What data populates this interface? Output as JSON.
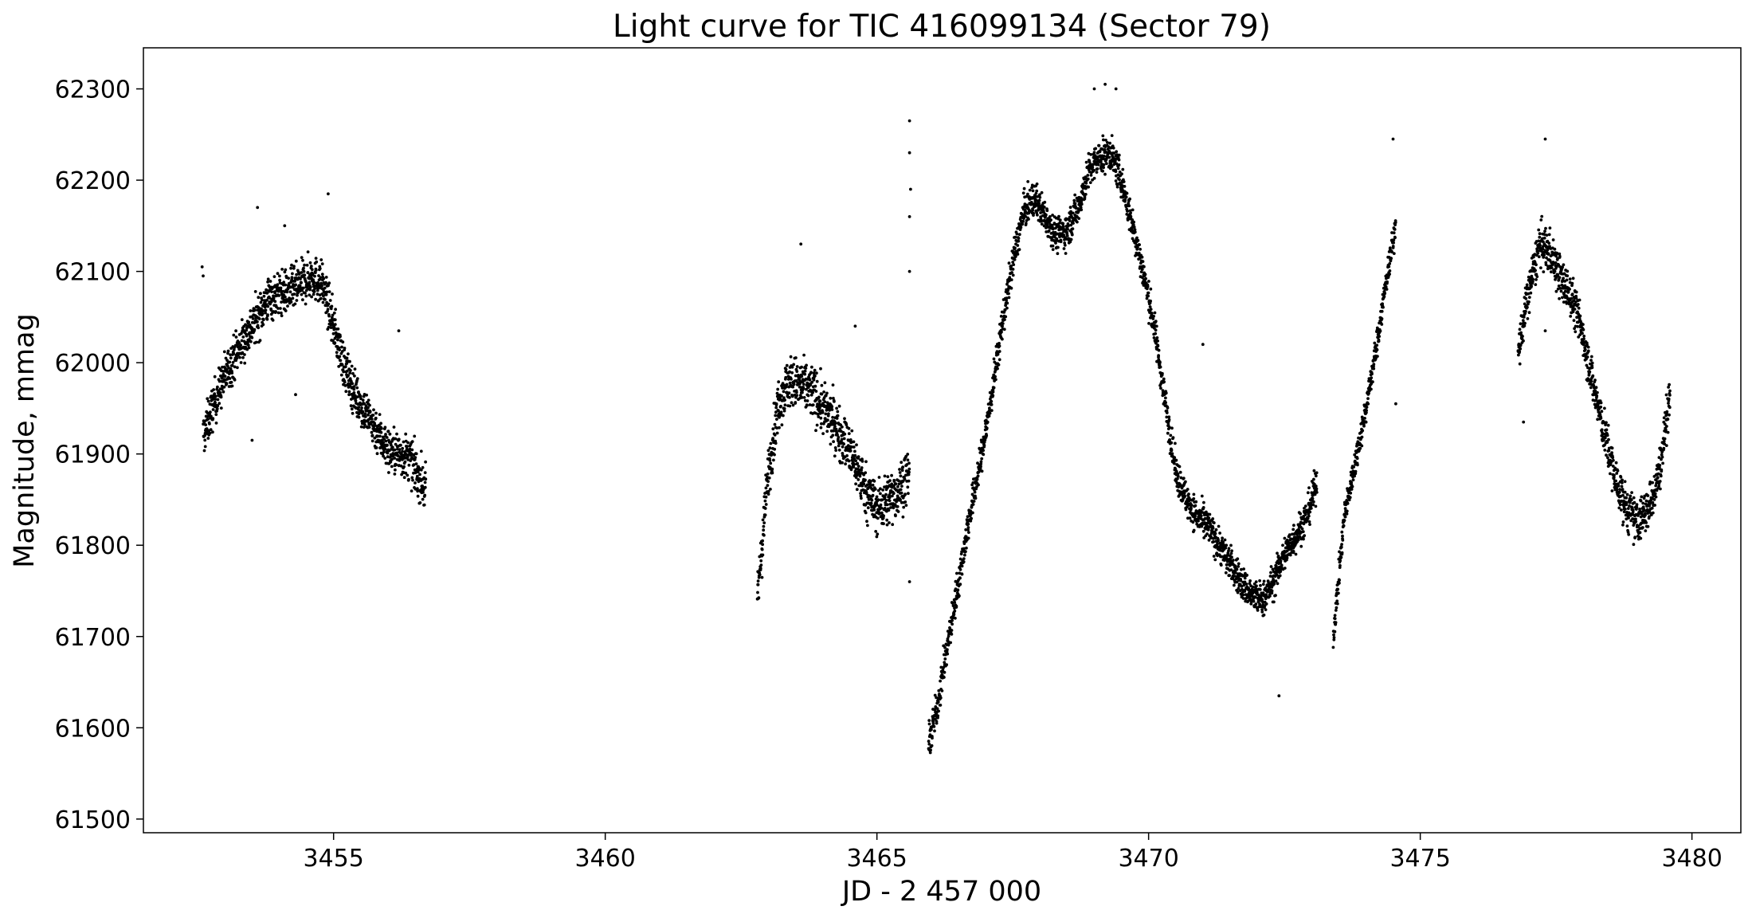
{
  "chart_data": {
    "type": "scatter",
    "title": "Light curve for TIC 416099134 (Sector 79)",
    "xlabel": "JD - 2 457 000",
    "ylabel": "Magnitude, mmag",
    "xlim": [
      3451.5,
      3480.9
    ],
    "ylim": [
      61485,
      62345
    ],
    "xticks": [
      3455,
      3460,
      3465,
      3470,
      3475,
      3480
    ],
    "yticks": [
      61500,
      61600,
      61700,
      61800,
      61900,
      62000,
      62100,
      62200,
      62300
    ],
    "grid": false,
    "marker_color": "#000000",
    "segments": [
      {
        "x": [
          3452.6,
          3452.8,
          3453.0,
          3453.2,
          3453.4,
          3453.6,
          3453.8,
          3454.0,
          3454.2,
          3454.4,
          3454.6,
          3454.8,
          3455.0,
          3455.2,
          3455.4,
          3455.6,
          3455.8,
          3456.0,
          3456.2,
          3456.4,
          3456.7
        ],
        "y": [
          61920,
          61955,
          61985,
          62010,
          62030,
          62050,
          62070,
          62075,
          62078,
          62085,
          62095,
          62085,
          62040,
          61995,
          61965,
          61945,
          61925,
          61905,
          61900,
          61895,
          61860
        ]
      },
      {
        "x": [
          3462.8,
          3463.0,
          3463.2,
          3463.4,
          3463.6,
          3463.8,
          3464.0,
          3464.2,
          3464.4,
          3464.6,
          3464.8,
          3465.0,
          3465.2,
          3465.4,
          3465.6
        ],
        "y": [
          61740,
          61880,
          61960,
          61980,
          61975,
          61970,
          61950,
          61935,
          61915,
          61890,
          61860,
          61840,
          61850,
          61860,
          61880
        ]
      },
      {
        "x": [
          3465.95,
          3466.1,
          3466.3,
          3466.5,
          3466.7,
          3466.9,
          3467.1,
          3467.3,
          3467.5,
          3467.7,
          3467.9,
          3468.1,
          3468.3,
          3468.5,
          3468.7,
          3468.9,
          3469.1,
          3469.3,
          3469.5,
          3469.7,
          3469.9,
          3470.1,
          3470.3,
          3470.5,
          3470.7,
          3470.9,
          3471.1,
          3471.3,
          3471.5,
          3471.7,
          3471.9,
          3472.1,
          3472.3,
          3472.5,
          3472.7,
          3472.9,
          3473.1
        ],
        "y": [
          61580,
          61620,
          61690,
          61760,
          61830,
          61890,
          61960,
          62040,
          62110,
          62165,
          62180,
          62160,
          62140,
          62145,
          62170,
          62210,
          62225,
          62230,
          62200,
          62150,
          62100,
          62040,
          61960,
          61880,
          61850,
          61830,
          61820,
          61800,
          61780,
          61760,
          61745,
          61740,
          61760,
          61790,
          61810,
          61830,
          61870
        ]
      },
      {
        "x": [
          3473.4,
          3473.6,
          3473.8,
          3474.0,
          3474.2,
          3474.4,
          3474.55
        ],
        "y": [
          61700,
          61830,
          61890,
          61950,
          62020,
          62100,
          62150
        ]
      },
      {
        "x": [
          3476.8,
          3477.0,
          3477.2,
          3477.4,
          3477.6,
          3477.8,
          3478.0,
          3478.2,
          3478.4,
          3478.6,
          3478.8,
          3479.0,
          3479.2,
          3479.4,
          3479.6
        ],
        "y": [
          62010,
          62080,
          62130,
          62120,
          62090,
          62070,
          62030,
          61970,
          61920,
          61870,
          61840,
          61825,
          61840,
          61880,
          61970
        ]
      }
    ],
    "outliers": {
      "x": [
        3452.58,
        3452.6,
        3453.5,
        3454.3,
        3454.9,
        3453.6,
        3454.1,
        3456.2,
        3463.6,
        3464.6,
        3465.6,
        3465.6,
        3465.62,
        3465.6,
        3465.6,
        3465.6,
        3469.0,
        3469.2,
        3469.4,
        3471.0,
        3472.4,
        3474.5,
        3474.55,
        3477.3,
        3477.3,
        3476.9
      ],
      "y": [
        62105,
        62095,
        61915,
        61965,
        62185,
        62170,
        62150,
        62035,
        62130,
        62040,
        62265,
        62230,
        62190,
        62160,
        61760,
        62100,
        62300,
        62305,
        62300,
        62020,
        61635,
        62245,
        61955,
        62245,
        62035,
        61935
      ]
    }
  }
}
